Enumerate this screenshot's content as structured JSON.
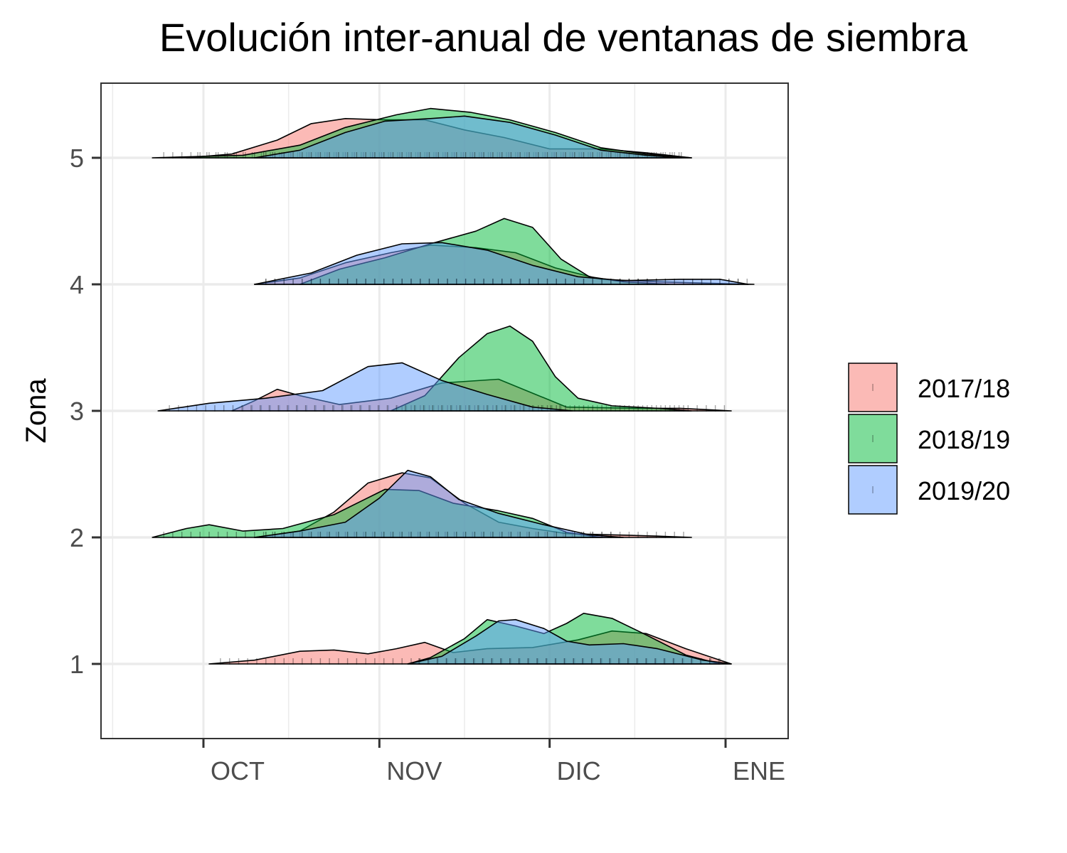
{
  "chart_data": {
    "type": "ridgeline",
    "title": "Evolución inter-anual de ventanas de siembra",
    "ylabel": "Zona",
    "xlabel": "",
    "x_ticks": [
      {
        "label": "OCT",
        "date": "2019-10-01"
      },
      {
        "label": "NOV",
        "date": "2019-11-01"
      },
      {
        "label": "DIC",
        "date": "2019-12-01"
      },
      {
        "label": "ENE",
        "date": "2020-01-01"
      }
    ],
    "y_ticks": [
      "1",
      "2",
      "3",
      "4",
      "5"
    ],
    "grid": true,
    "legend_position": "right",
    "colors": {
      "2017/18": "#f8766d",
      "2018/19": "#00ba38",
      "2019/20": "#619cff"
    },
    "series": [
      {
        "name": "2017/18",
        "zones": [
          {
            "zona": 1,
            "density": [
              [
                "2019-10-02",
                0.0
              ],
              [
                "2019-10-10",
                0.03
              ],
              [
                "2019-10-18",
                0.1
              ],
              [
                "2019-10-24",
                0.11
              ],
              [
                "2019-10-30",
                0.08
              ],
              [
                "2019-11-04",
                0.12
              ],
              [
                "2019-11-09",
                0.17
              ],
              [
                "2019-11-14",
                0.09
              ],
              [
                "2019-11-20",
                0.12
              ],
              [
                "2019-11-28",
                0.13
              ],
              [
                "2019-12-06",
                0.19
              ],
              [
                "2019-12-12",
                0.26
              ],
              [
                "2019-12-18",
                0.24
              ],
              [
                "2019-12-25",
                0.12
              ],
              [
                "2020-01-02",
                0.0
              ]
            ]
          },
          {
            "zona": 2,
            "density": [
              [
                "2019-10-10",
                0.0
              ],
              [
                "2019-10-18",
                0.05
              ],
              [
                "2019-10-24",
                0.2
              ],
              [
                "2019-10-30",
                0.43
              ],
              [
                "2019-11-05",
                0.51
              ],
              [
                "2019-11-10",
                0.47
              ],
              [
                "2019-11-16",
                0.27
              ],
              [
                "2019-11-22",
                0.12
              ],
              [
                "2019-11-28",
                0.07
              ],
              [
                "2019-12-04",
                0.03
              ],
              [
                "2019-12-12",
                0.02
              ],
              [
                "2019-12-20",
                0.01
              ],
              [
                "2019-12-26",
                0.0
              ]
            ]
          },
          {
            "zona": 3,
            "density": [
              [
                "2019-10-06",
                0.0
              ],
              [
                "2019-10-10",
                0.08
              ],
              [
                "2019-10-14",
                0.17
              ],
              [
                "2019-10-18",
                0.12
              ],
              [
                "2019-10-25",
                0.05
              ],
              [
                "2019-11-03",
                0.1
              ],
              [
                "2019-11-12",
                0.22
              ],
              [
                "2019-11-22",
                0.25
              ],
              [
                "2019-11-28",
                0.14
              ],
              [
                "2019-12-04",
                0.03
              ],
              [
                "2019-12-16",
                0.02
              ],
              [
                "2019-12-24",
                0.02
              ],
              [
                "2020-01-02",
                0.0
              ]
            ]
          },
          {
            "zona": 4,
            "density": [
              [
                "2019-10-10",
                0.0
              ],
              [
                "2019-10-18",
                0.05
              ],
              [
                "2019-10-26",
                0.17
              ],
              [
                "2019-11-03",
                0.25
              ],
              [
                "2019-11-10",
                0.31
              ],
              [
                "2019-11-18",
                0.29
              ],
              [
                "2019-11-25",
                0.25
              ],
              [
                "2019-12-02",
                0.13
              ],
              [
                "2019-12-10",
                0.04
              ],
              [
                "2019-12-20",
                0.02
              ],
              [
                "2019-12-28",
                0.01
              ],
              [
                "2020-01-06",
                0.0
              ]
            ]
          },
          {
            "zona": 5,
            "density": [
              [
                "2019-09-28",
                0.0
              ],
              [
                "2019-10-06",
                0.03
              ],
              [
                "2019-10-14",
                0.14
              ],
              [
                "2019-10-20",
                0.27
              ],
              [
                "2019-10-26",
                0.31
              ],
              [
                "2019-11-02",
                0.3
              ],
              [
                "2019-11-09",
                0.3
              ],
              [
                "2019-11-16",
                0.22
              ],
              [
                "2019-11-23",
                0.16
              ],
              [
                "2019-12-01",
                0.07
              ],
              [
                "2019-12-10",
                0.07
              ],
              [
                "2019-12-18",
                0.04
              ],
              [
                "2019-12-26",
                0.0
              ]
            ]
          }
        ]
      },
      {
        "name": "2018/19",
        "zones": [
          {
            "zona": 1,
            "density": [
              [
                "2019-11-06",
                0.0
              ],
              [
                "2019-11-10",
                0.05
              ],
              [
                "2019-11-16",
                0.2
              ],
              [
                "2019-11-20",
                0.35
              ],
              [
                "2019-11-25",
                0.3
              ],
              [
                "2019-11-30",
                0.24
              ],
              [
                "2019-12-04",
                0.32
              ],
              [
                "2019-12-07",
                0.4
              ],
              [
                "2019-12-12",
                0.36
              ],
              [
                "2019-12-18",
                0.23
              ],
              [
                "2019-12-25",
                0.07
              ],
              [
                "2019-12-31",
                0.0
              ]
            ]
          },
          {
            "zona": 2,
            "density": [
              [
                "2019-09-22",
                0.0
              ],
              [
                "2019-09-28",
                0.07
              ],
              [
                "2019-10-02",
                0.1
              ],
              [
                "2019-10-08",
                0.05
              ],
              [
                "2019-10-15",
                0.07
              ],
              [
                "2019-10-24",
                0.18
              ],
              [
                "2019-11-02",
                0.38
              ],
              [
                "2019-11-08",
                0.37
              ],
              [
                "2019-11-14",
                0.27
              ],
              [
                "2019-11-22",
                0.21
              ],
              [
                "2019-11-28",
                0.15
              ],
              [
                "2019-12-04",
                0.04
              ],
              [
                "2019-12-10",
                0.0
              ]
            ]
          },
          {
            "zona": 3,
            "density": [
              [
                "2019-11-03",
                0.0
              ],
              [
                "2019-11-09",
                0.12
              ],
              [
                "2019-11-15",
                0.42
              ],
              [
                "2019-11-20",
                0.61
              ],
              [
                "2019-11-24",
                0.67
              ],
              [
                "2019-11-28",
                0.55
              ],
              [
                "2019-12-02",
                0.27
              ],
              [
                "2019-12-06",
                0.1
              ],
              [
                "2019-12-12",
                0.04
              ],
              [
                "2019-12-20",
                0.02
              ],
              [
                "2019-12-26",
                0.0
              ]
            ]
          },
          {
            "zona": 4,
            "density": [
              [
                "2019-10-18",
                0.0
              ],
              [
                "2019-10-25",
                0.12
              ],
              [
                "2019-11-02",
                0.21
              ],
              [
                "2019-11-10",
                0.32
              ],
              [
                "2019-11-18",
                0.42
              ],
              [
                "2019-11-23",
                0.52
              ],
              [
                "2019-11-28",
                0.45
              ],
              [
                "2019-12-03",
                0.2
              ],
              [
                "2019-12-08",
                0.06
              ],
              [
                "2019-12-14",
                0.02
              ],
              [
                "2019-12-22",
                0.0
              ]
            ]
          },
          {
            "zona": 5,
            "density": [
              [
                "2019-09-22",
                0.0
              ],
              [
                "2019-09-30",
                0.01
              ],
              [
                "2019-10-08",
                0.02
              ],
              [
                "2019-10-18",
                0.1
              ],
              [
                "2019-10-26",
                0.24
              ],
              [
                "2019-11-04",
                0.34
              ],
              [
                "2019-11-10",
                0.39
              ],
              [
                "2019-11-17",
                0.36
              ],
              [
                "2019-11-24",
                0.3
              ],
              [
                "2019-12-02",
                0.2
              ],
              [
                "2019-12-10",
                0.08
              ],
              [
                "2019-12-18",
                0.03
              ],
              [
                "2019-12-26",
                0.0
              ]
            ]
          }
        ]
      },
      {
        "name": "2019/20",
        "zones": [
          {
            "zona": 1,
            "density": [
              [
                "2019-11-06",
                0.0
              ],
              [
                "2019-11-12",
                0.06
              ],
              [
                "2019-11-18",
                0.22
              ],
              [
                "2019-11-22",
                0.34
              ],
              [
                "2019-11-25",
                0.35
              ],
              [
                "2019-11-30",
                0.28
              ],
              [
                "2019-12-04",
                0.18
              ],
              [
                "2019-12-08",
                0.15
              ],
              [
                "2019-12-14",
                0.16
              ],
              [
                "2019-12-20",
                0.12
              ],
              [
                "2019-12-28",
                0.03
              ],
              [
                "2020-01-02",
                0.0
              ]
            ]
          },
          {
            "zona": 2,
            "density": [
              [
                "2019-10-10",
                0.0
              ],
              [
                "2019-10-18",
                0.05
              ],
              [
                "2019-10-26",
                0.12
              ],
              [
                "2019-11-01",
                0.31
              ],
              [
                "2019-11-06",
                0.53
              ],
              [
                "2019-11-10",
                0.48
              ],
              [
                "2019-11-15",
                0.3
              ],
              [
                "2019-11-22",
                0.19
              ],
              [
                "2019-11-30",
                0.1
              ],
              [
                "2019-12-08",
                0.02
              ],
              [
                "2019-12-14",
                0.0
              ]
            ]
          },
          {
            "zona": 3,
            "density": [
              [
                "2019-09-23",
                0.0
              ],
              [
                "2019-10-02",
                0.06
              ],
              [
                "2019-10-12",
                0.1
              ],
              [
                "2019-10-22",
                0.16
              ],
              [
                "2019-10-30",
                0.35
              ],
              [
                "2019-11-05",
                0.38
              ],
              [
                "2019-11-12",
                0.24
              ],
              [
                "2019-11-20",
                0.13
              ],
              [
                "2019-11-28",
                0.03
              ],
              [
                "2019-12-05",
                0.0
              ]
            ]
          },
          {
            "zona": 4,
            "density": [
              [
                "2019-10-10",
                0.0
              ],
              [
                "2019-10-20",
                0.09
              ],
              [
                "2019-10-28",
                0.23
              ],
              [
                "2019-11-05",
                0.32
              ],
              [
                "2019-11-12",
                0.33
              ],
              [
                "2019-11-20",
                0.27
              ],
              [
                "2019-11-28",
                0.15
              ],
              [
                "2019-12-06",
                0.06
              ],
              [
                "2019-12-14",
                0.03
              ],
              [
                "2019-12-24",
                0.04
              ],
              [
                "2019-12-31",
                0.04
              ],
              [
                "2020-01-05",
                0.0
              ]
            ]
          },
          {
            "zona": 5,
            "density": [
              [
                "2019-10-10",
                0.0
              ],
              [
                "2019-10-18",
                0.06
              ],
              [
                "2019-10-26",
                0.2
              ],
              [
                "2019-11-02",
                0.29
              ],
              [
                "2019-11-10",
                0.31
              ],
              [
                "2019-11-16",
                0.33
              ],
              [
                "2019-11-24",
                0.28
              ],
              [
                "2019-12-02",
                0.18
              ],
              [
                "2019-12-10",
                0.06
              ],
              [
                "2019-12-18",
                0.02
              ],
              [
                "2019-12-24",
                0.0
              ]
            ]
          }
        ]
      }
    ]
  }
}
